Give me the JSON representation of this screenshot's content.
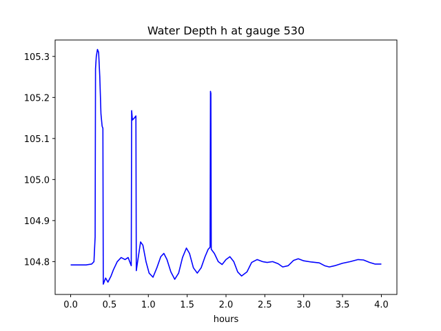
{
  "chart_data": {
    "type": "line",
    "title": "Water Depth h at gauge 530",
    "xlabel": "hours",
    "ylabel": "",
    "xlim": [
      -0.2,
      4.2
    ],
    "ylim": [
      104.72,
      105.34
    ],
    "grid": false,
    "x_ticks": [
      0.0,
      0.5,
      1.0,
      1.5,
      2.0,
      2.5,
      3.0,
      3.5,
      4.0
    ],
    "x_tick_labels": [
      "0.0",
      "0.5",
      "1.0",
      "1.5",
      "2.0",
      "2.5",
      "3.0",
      "3.5",
      "4.0"
    ],
    "y_ticks": [
      104.8,
      104.9,
      105.0,
      105.1,
      105.2,
      105.3
    ],
    "y_tick_labels": [
      "104.8",
      "104.9",
      "105.0",
      "105.1",
      "105.2",
      "105.3"
    ],
    "series": [
      {
        "color": "#0000ff",
        "points": [
          [
            0.0,
            104.792
          ],
          [
            0.1,
            104.792
          ],
          [
            0.2,
            104.792
          ],
          [
            0.27,
            104.794
          ],
          [
            0.3,
            104.8
          ],
          [
            0.315,
            104.86
          ],
          [
            0.32,
            105.27
          ],
          [
            0.33,
            105.3
          ],
          [
            0.345,
            105.317
          ],
          [
            0.36,
            105.31
          ],
          [
            0.375,
            105.25
          ],
          [
            0.39,
            105.16
          ],
          [
            0.405,
            105.13
          ],
          [
            0.415,
            105.125
          ],
          [
            0.42,
            104.745
          ],
          [
            0.45,
            104.76
          ],
          [
            0.48,
            104.75
          ],
          [
            0.52,
            104.765
          ],
          [
            0.55,
            104.78
          ],
          [
            0.6,
            104.8
          ],
          [
            0.65,
            104.81
          ],
          [
            0.7,
            104.805
          ],
          [
            0.74,
            104.81
          ],
          [
            0.77,
            104.795
          ],
          [
            0.78,
            104.79
          ],
          [
            0.785,
            105.168
          ],
          [
            0.795,
            105.145
          ],
          [
            0.82,
            105.15
          ],
          [
            0.84,
            105.155
          ],
          [
            0.845,
            104.778
          ],
          [
            0.87,
            104.81
          ],
          [
            0.9,
            104.848
          ],
          [
            0.93,
            104.84
          ],
          [
            0.97,
            104.8
          ],
          [
            1.01,
            104.772
          ],
          [
            1.06,
            104.762
          ],
          [
            1.11,
            104.785
          ],
          [
            1.16,
            104.812
          ],
          [
            1.2,
            104.82
          ],
          [
            1.24,
            104.805
          ],
          [
            1.29,
            104.775
          ],
          [
            1.34,
            104.757
          ],
          [
            1.39,
            104.772
          ],
          [
            1.44,
            104.81
          ],
          [
            1.49,
            104.833
          ],
          [
            1.53,
            104.82
          ],
          [
            1.58,
            104.785
          ],
          [
            1.63,
            104.772
          ],
          [
            1.68,
            104.785
          ],
          [
            1.73,
            104.812
          ],
          [
            1.77,
            104.83
          ],
          [
            1.795,
            104.835
          ],
          [
            1.8,
            105.215
          ],
          [
            1.805,
            105.21
          ],
          [
            1.81,
            104.83
          ],
          [
            1.85,
            104.82
          ],
          [
            1.9,
            104.8
          ],
          [
            1.95,
            104.793
          ],
          [
            2.0,
            104.805
          ],
          [
            2.05,
            104.812
          ],
          [
            2.1,
            104.8
          ],
          [
            2.15,
            104.775
          ],
          [
            2.2,
            104.765
          ],
          [
            2.27,
            104.775
          ],
          [
            2.33,
            104.798
          ],
          [
            2.4,
            104.805
          ],
          [
            2.47,
            104.8
          ],
          [
            2.53,
            104.798
          ],
          [
            2.6,
            104.8
          ],
          [
            2.67,
            104.795
          ],
          [
            2.73,
            104.787
          ],
          [
            2.8,
            104.79
          ],
          [
            2.87,
            104.803
          ],
          [
            2.93,
            104.807
          ],
          [
            3.0,
            104.802
          ],
          [
            3.1,
            104.799
          ],
          [
            3.2,
            104.797
          ],
          [
            3.27,
            104.79
          ],
          [
            3.33,
            104.787
          ],
          [
            3.4,
            104.79
          ],
          [
            3.5,
            104.796
          ],
          [
            3.6,
            104.8
          ],
          [
            3.7,
            104.805
          ],
          [
            3.77,
            104.804
          ],
          [
            3.85,
            104.798
          ],
          [
            3.92,
            104.794
          ],
          [
            4.0,
            104.794
          ]
        ]
      }
    ]
  }
}
